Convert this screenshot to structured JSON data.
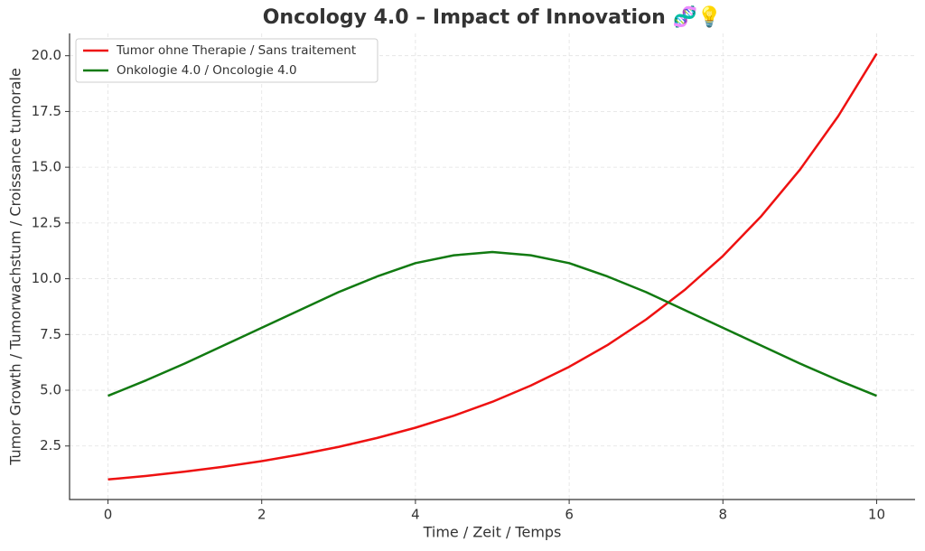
{
  "chart_data": {
    "type": "line",
    "title": "Oncology 4.0 – Impact of Innovation 🧬💡",
    "x_label": "Time / Zeit / Temps",
    "y_label": "Tumor Growth / Tumorwachstum / Croissance tumorale",
    "x": [
      0,
      0.5,
      1,
      1.5,
      2,
      2.5,
      3,
      3.5,
      4,
      4.5,
      5,
      5.5,
      6,
      6.5,
      7,
      7.5,
      8,
      8.5,
      9,
      9.5,
      10
    ],
    "series": [
      {
        "name": "Tumor ohne Therapie / Sans traitement",
        "color": "#ee1111",
        "values": [
          1,
          1.16,
          1.35,
          1.57,
          1.82,
          2.12,
          2.46,
          2.86,
          3.32,
          3.86,
          4.48,
          5.21,
          6.05,
          7.03,
          8.17,
          9.49,
          11.02,
          12.81,
          14.88,
          17.29,
          20.09
        ]
      },
      {
        "name": "Onkologie 4.0 / Oncologie 4.0",
        "color": "#117a11",
        "values": [
          4.75,
          5.45,
          6.2,
          7.0,
          7.8,
          8.6,
          9.4,
          10.1,
          10.7,
          11.05,
          11.2,
          11.05,
          10.7,
          10.1,
          9.4,
          8.6,
          7.8,
          7.0,
          6.2,
          5.45,
          4.75
        ]
      }
    ],
    "xlim": [
      -0.5,
      10.5
    ],
    "xticks": [
      0,
      2,
      4,
      6,
      8,
      10
    ],
    "ylim": [
      0.1,
      21
    ],
    "yticks": [
      2.5,
      {
        "value": 5,
        "label": "5.0"
      },
      7.5,
      {
        "value": 10,
        "label": "10.0"
      },
      12.5,
      {
        "value": 15,
        "label": "15.0"
      },
      17.5,
      {
        "value": 20,
        "label": "20.0"
      }
    ],
    "grid": true,
    "legend": "upper left"
  }
}
